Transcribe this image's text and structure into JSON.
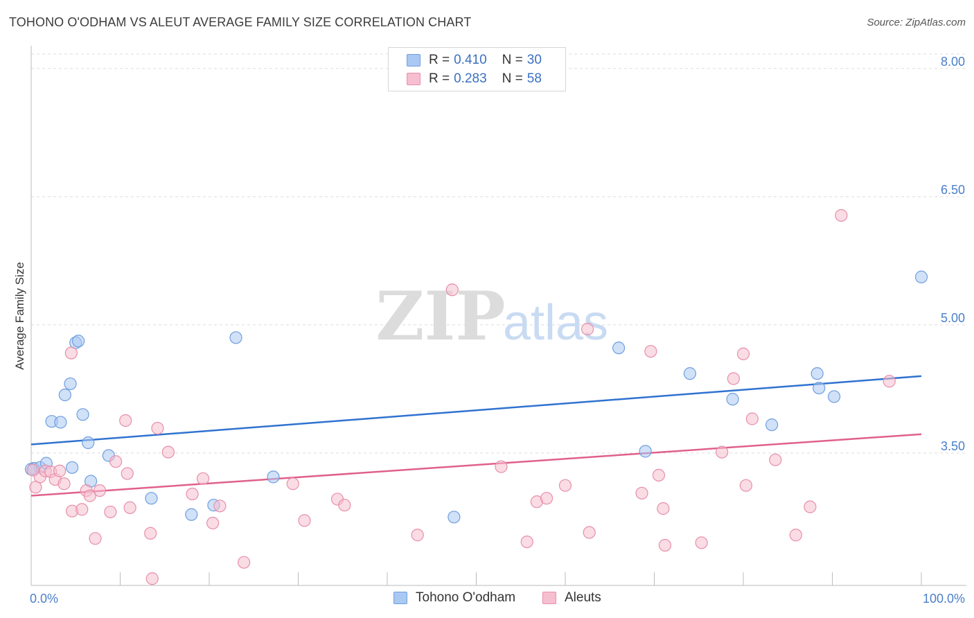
{
  "title": "TOHONO O'ODHAM VS ALEUT AVERAGE FAMILY SIZE CORRELATION CHART",
  "source": "Source: ZipAtlas.com",
  "watermark": {
    "zip": "ZIP",
    "atlas": "atlas"
  },
  "legend_top": [
    {
      "r_label": "R =",
      "r_value": "0.410",
      "n_label": "N =",
      "n_value": "30"
    },
    {
      "r_label": "R =",
      "r_value": "0.283",
      "n_label": "N =",
      "n_value": "58"
    }
  ],
  "legend_bottom": [
    {
      "label": "Tohono O'odham"
    },
    {
      "label": "Aleuts"
    }
  ],
  "colors": {
    "blue_fill": "#a9c8f2",
    "blue_stroke": "#6f9ede",
    "blue_line": "#2f72d0",
    "pink_fill": "#f6bfd0",
    "pink_stroke": "#e78eaa",
    "pink_line": "#e0608c",
    "grid": "#dcdcdc",
    "tick_text": "#4a7fc9"
  },
  "chart_data": {
    "type": "scatter",
    "title": "TOHONO O'ODHAM VS ALEUT AVERAGE FAMILY SIZE CORRELATION CHART",
    "xlabel": "",
    "ylabel": "Average Family Size",
    "x_tick_labels": [
      "0.0%",
      "100.0%"
    ],
    "y_ticks": [
      3.5,
      5.0,
      6.5,
      8.0
    ],
    "y_tick_labels": [
      "3.50",
      "5.00",
      "6.50",
      "8.00"
    ],
    "xlim": [
      0,
      100
    ],
    "ylim": [
      1.95,
      8.25
    ],
    "series": [
      {
        "name": "Tohono O'odham",
        "color": "blue",
        "trend": {
          "x": [
            0,
            100
          ],
          "y": [
            3.6,
            4.4
          ]
        },
        "points": [
          [
            0.3,
            3.32
          ],
          [
            1.0,
            3.33
          ],
          [
            1.7,
            3.38
          ],
          [
            2.3,
            3.87
          ],
          [
            3.3,
            3.86
          ],
          [
            3.8,
            4.18
          ],
          [
            4.4,
            4.31
          ],
          [
            4.6,
            3.33
          ],
          [
            5.0,
            4.79
          ],
          [
            5.3,
            4.81
          ],
          [
            5.8,
            3.95
          ],
          [
            6.4,
            3.62
          ],
          [
            6.7,
            3.17
          ],
          [
            8.7,
            3.47
          ],
          [
            13.5,
            2.97
          ],
          [
            18.0,
            2.78
          ],
          [
            20.5,
            2.89
          ],
          [
            23.0,
            4.85
          ],
          [
            27.2,
            3.22
          ],
          [
            47.5,
            2.75
          ],
          [
            66.0,
            4.73
          ],
          [
            69.0,
            3.52
          ],
          [
            74.0,
            4.43
          ],
          [
            78.8,
            4.13
          ],
          [
            83.2,
            3.83
          ],
          [
            88.3,
            4.43
          ],
          [
            88.5,
            4.26
          ],
          [
            90.2,
            4.16
          ],
          [
            100.0,
            5.56
          ],
          [
            0.0,
            3.31
          ]
        ]
      },
      {
        "name": "Aleuts",
        "color": "pink",
        "trend": {
          "x": [
            0,
            100
          ],
          "y": [
            3.0,
            3.72
          ]
        },
        "points": [
          [
            0.5,
            3.1
          ],
          [
            1.0,
            3.22
          ],
          [
            1.6,
            3.29
          ],
          [
            2.2,
            3.28
          ],
          [
            2.7,
            3.19
          ],
          [
            3.2,
            3.29
          ],
          [
            3.7,
            3.14
          ],
          [
            4.5,
            4.67
          ],
          [
            4.6,
            2.82
          ],
          [
            5.7,
            2.84
          ],
          [
            6.2,
            3.06
          ],
          [
            6.6,
            3.0
          ],
          [
            7.2,
            2.5
          ],
          [
            7.7,
            3.06
          ],
          [
            8.9,
            2.81
          ],
          [
            9.5,
            3.4
          ],
          [
            10.6,
            3.88
          ],
          [
            10.8,
            3.26
          ],
          [
            11.1,
            2.86
          ],
          [
            13.4,
            2.56
          ],
          [
            13.6,
            2.03
          ],
          [
            14.2,
            3.79
          ],
          [
            15.4,
            3.51
          ],
          [
            18.1,
            3.02
          ],
          [
            19.3,
            3.2
          ],
          [
            20.4,
            2.68
          ],
          [
            21.2,
            2.88
          ],
          [
            23.9,
            2.22
          ],
          [
            29.4,
            3.14
          ],
          [
            30.7,
            2.71
          ],
          [
            34.4,
            2.96
          ],
          [
            35.2,
            2.89
          ],
          [
            43.4,
            2.54
          ],
          [
            47.3,
            5.41
          ],
          [
            52.8,
            3.34
          ],
          [
            55.7,
            2.46
          ],
          [
            56.8,
            2.93
          ],
          [
            57.9,
            2.97
          ],
          [
            60.0,
            3.12
          ],
          [
            62.5,
            4.95
          ],
          [
            62.7,
            2.57
          ],
          [
            68.6,
            3.03
          ],
          [
            69.6,
            4.69
          ],
          [
            70.5,
            3.24
          ],
          [
            71.0,
            2.85
          ],
          [
            71.2,
            2.42
          ],
          [
            75.3,
            2.45
          ],
          [
            77.6,
            3.51
          ],
          [
            78.9,
            4.37
          ],
          [
            80.0,
            4.66
          ],
          [
            80.3,
            3.12
          ],
          [
            81.0,
            3.9
          ],
          [
            83.6,
            3.42
          ],
          [
            85.9,
            2.54
          ],
          [
            87.5,
            2.87
          ],
          [
            91.0,
            6.28
          ],
          [
            96.4,
            4.34
          ],
          [
            0.2,
            3.3
          ]
        ]
      }
    ]
  }
}
